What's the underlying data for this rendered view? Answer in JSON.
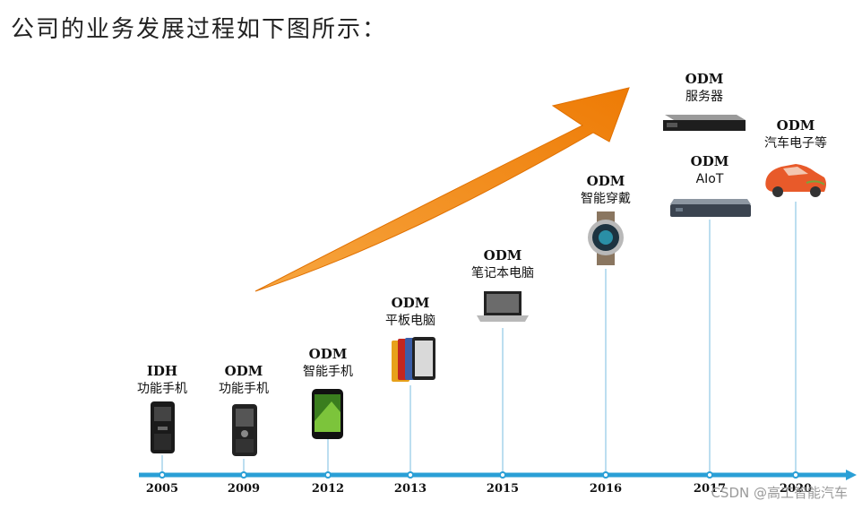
{
  "title": "公司的业务发展过程如下图所示：",
  "watermark": "CSDN @高工智能汽车",
  "milestones": [
    {
      "year": "2005",
      "line1": "IDH",
      "line2": "功能手机",
      "icon": "feature-phone-icon"
    },
    {
      "year": "2009",
      "line1": "ODM",
      "line2": "功能手机",
      "icon": "feature-phone-icon"
    },
    {
      "year": "2012",
      "line1": "ODM",
      "line2": "智能手机",
      "icon": "smartphone-icon"
    },
    {
      "year": "2013",
      "line1": "ODM",
      "line2": "平板电脑",
      "icon": "tablet-icon"
    },
    {
      "year": "2015",
      "line1": "ODM",
      "line2": "笔记本电脑",
      "icon": "laptop-icon"
    },
    {
      "year": "2016",
      "line1": "ODM",
      "line2": "智能穿戴",
      "icon": "smartwatch-icon"
    },
    {
      "year": "2017",
      "line1": "ODM",
      "line2": "AIoT",
      "icon": "aiot-device-icon"
    },
    {
      "year": "2020",
      "line1": "ODM",
      "line2": "汽车电子等",
      "icon": "car-icon"
    }
  ],
  "top_item": {
    "line1": "ODM",
    "line2": "服务器",
    "icon": "server-icon"
  },
  "colors": {
    "timeline": "#2a9fd6",
    "arrow": "#f28a12",
    "guide": "#8fc7e6"
  }
}
